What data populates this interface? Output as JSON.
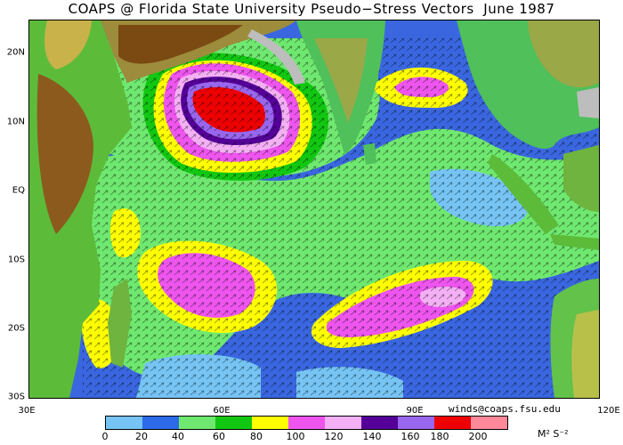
{
  "title": "COAPS @ Florida State University Pseudo−Stress Vectors  June 1987",
  "credit": "winds@coaps.fsu.edu",
  "lat_labels": [
    "20N",
    "10N",
    "EQ",
    "10S",
    "20S",
    "30S"
  ],
  "lon_labels": [
    "30E",
    "60E",
    "90E",
    "120E"
  ],
  "colorbar": {
    "ticks": [
      "0",
      "20",
      "40",
      "60",
      "80",
      "100",
      "120",
      "140",
      "160",
      "180",
      "200"
    ],
    "colors": [
      "#76c4f4",
      "#2c6ae8",
      "#6fe86f",
      "#12c712",
      "#ffff00",
      "#ee55ee",
      "#f4b0f4",
      "#550099",
      "#9966ee",
      "#ee0000",
      "#ff8899"
    ],
    "unit": "M² S⁻²"
  }
}
